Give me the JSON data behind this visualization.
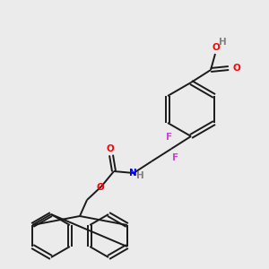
{
  "bg_color": "#ebebeb",
  "bond_color": "#1a1a1a",
  "atom_colors": {
    "O": "#ff0000",
    "N": "#0000ff",
    "F": "#cc44cc",
    "H_gray": "#808080",
    "C": "#1a1a1a"
  },
  "lw": 1.4,
  "fs": 7.5
}
